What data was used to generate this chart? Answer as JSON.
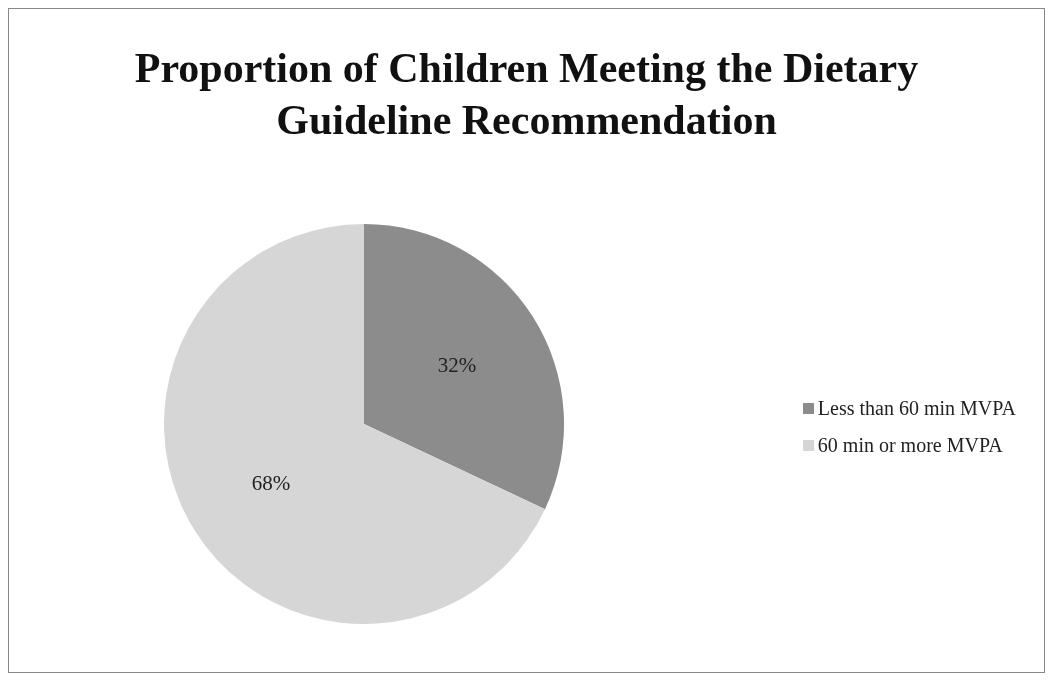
{
  "chart_data": {
    "type": "pie",
    "title": "Proportion of Children Meeting the Dietary Guideline Recommendation",
    "categories": [
      "Less than 60 min MVPA",
      "60 min or more MVPA"
    ],
    "values": [
      32,
      68
    ],
    "colors": [
      "#8c8c8c",
      "#d6d6d6"
    ],
    "value_labels": [
      "32%",
      "68%"
    ],
    "legend": "right"
  }
}
